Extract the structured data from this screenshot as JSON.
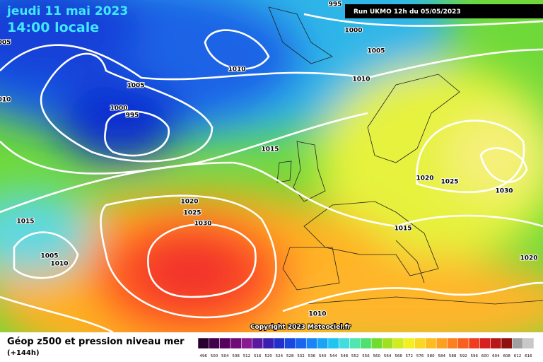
{
  "header": {
    "date": "jeudi 11 mai 2023",
    "time": "14:00 locale",
    "run": "Run UKMO 12h du 05/05/2023"
  },
  "isobar_labels": [
    "995",
    "1000",
    "1005",
    "1010",
    "1010",
    "1005",
    "1000",
    "995",
    "1015",
    "1020",
    "1025",
    "1030",
    "1020",
    "1025",
    "1030",
    "1015",
    "1015",
    "1005",
    "1010",
    "1020",
    "1010",
    "005",
    "010"
  ],
  "copyright": "Copyright 2023 Meteociel.fr",
  "footer": {
    "title": "Géop z500 et pression niveau mer",
    "lead": "(+144h)"
  },
  "legend": {
    "values": [
      496,
      500,
      504,
      508,
      512,
      516,
      520,
      524,
      528,
      532,
      536,
      540,
      544,
      548,
      552,
      556,
      560,
      564,
      568,
      572,
      576,
      580,
      584,
      588,
      592,
      596,
      600,
      604,
      608,
      612,
      616
    ]
  }
}
